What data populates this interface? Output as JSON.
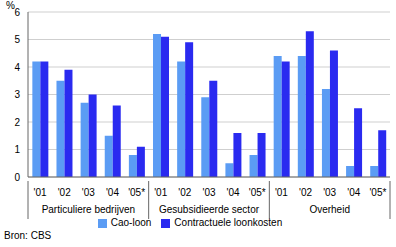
{
  "chart_data": {
    "type": "bar",
    "y_label": "%",
    "source": "Bron: CBS",
    "categories": [
      "'01",
      "'02",
      "'03",
      "'04",
      "'05*",
      "'01",
      "'02",
      "'03",
      "'04",
      "'05*",
      "'01",
      "'02",
      "'03",
      "'04",
      "'05*"
    ],
    "category_groups": [
      "Particuliere bedrijven",
      "Particuliere bedrijven",
      "Particuliere bedrijven",
      "Particuliere bedrijven",
      "Particuliere bedrijven",
      "Gesubsidieerde sector",
      "Gesubsidieerde sector",
      "Gesubsidieerde sector",
      "Gesubsidieerde sector",
      "Gesubsidieerde sector",
      "Overheid",
      "Overheid",
      "Overheid",
      "Overheid",
      "Overheid"
    ],
    "series": [
      {
        "name": "Cao-loon",
        "color": "#5b9cf4",
        "values": [
          4.2,
          3.5,
          2.7,
          1.5,
          0.8,
          5.2,
          4.2,
          2.9,
          0.5,
          0.8,
          4.4,
          4.4,
          3.2,
          0.4,
          0.4
        ]
      },
      {
        "name": "Contractuele loonkosten",
        "color": "#2a2af0",
        "values": [
          4.2,
          3.9,
          3.0,
          2.6,
          1.1,
          5.1,
          4.9,
          3.5,
          1.6,
          1.6,
          4.2,
          5.3,
          4.6,
          2.5,
          1.7
        ]
      }
    ],
    "ylim": [
      0,
      6
    ],
    "yticks": [
      0,
      1,
      2,
      3,
      4,
      5,
      6
    ],
    "grid": true,
    "legend": "bottom"
  }
}
